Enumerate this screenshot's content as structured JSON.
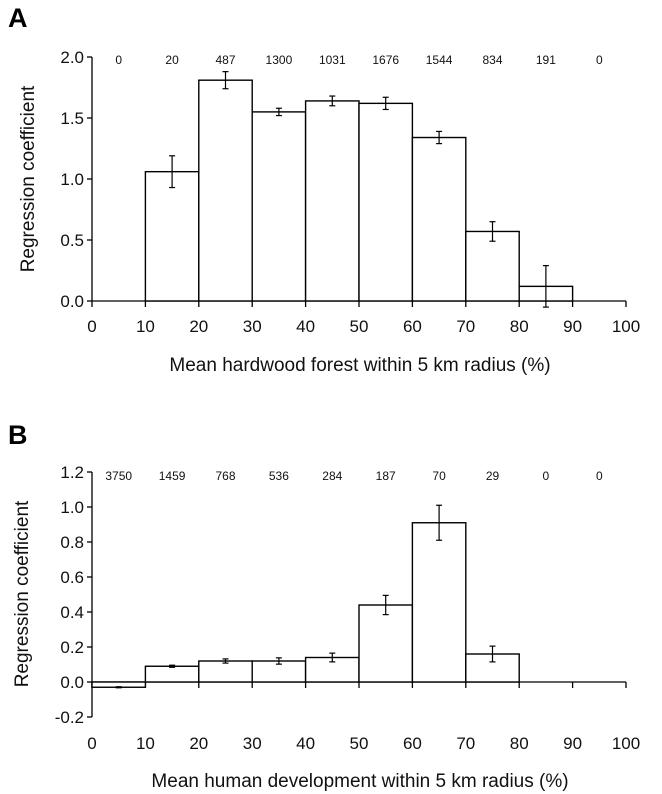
{
  "chart_data": [
    {
      "type": "bar",
      "panel_label": "A",
      "xlabel": "Mean hardwood forest within 5 km radius (%)",
      "ylabel": "Regression coefficient",
      "xlim": [
        0,
        100
      ],
      "ylim": [
        0,
        2.0
      ],
      "x_ticks": [
        "0",
        "10",
        "20",
        "30",
        "40",
        "50",
        "60",
        "70",
        "80",
        "90",
        "100"
      ],
      "y_ticks": [
        "0.0",
        "0.5",
        "1.0",
        "1.5",
        "2.0"
      ],
      "bins": [
        {
          "from": 0,
          "to": 10,
          "value": null,
          "error": null,
          "n": "0"
        },
        {
          "from": 10,
          "to": 20,
          "value": 1.06,
          "error": 0.13,
          "n": "20"
        },
        {
          "from": 20,
          "to": 30,
          "value": 1.81,
          "error": 0.07,
          "n": "487"
        },
        {
          "from": 30,
          "to": 40,
          "value": 1.55,
          "error": 0.03,
          "n": "1300"
        },
        {
          "from": 40,
          "to": 50,
          "value": 1.64,
          "error": 0.04,
          "n": "1031"
        },
        {
          "from": 50,
          "to": 60,
          "value": 1.62,
          "error": 0.05,
          "n": "1676"
        },
        {
          "from": 60,
          "to": 70,
          "value": 1.34,
          "error": 0.05,
          "n": "1544"
        },
        {
          "from": 70,
          "to": 80,
          "value": 0.57,
          "error": 0.08,
          "n": "834"
        },
        {
          "from": 80,
          "to": 90,
          "value": 0.12,
          "error": 0.17,
          "n": "191"
        },
        {
          "from": 90,
          "to": 100,
          "value": null,
          "error": null,
          "n": "0"
        }
      ]
    },
    {
      "type": "bar",
      "panel_label": "B",
      "xlabel": "Mean human development within 5 km radius (%)",
      "ylabel": "Regression coefficient",
      "xlim": [
        0,
        100
      ],
      "ylim": [
        -0.2,
        1.2
      ],
      "x_ticks": [
        "0",
        "10",
        "20",
        "30",
        "40",
        "50",
        "60",
        "70",
        "80",
        "90",
        "100"
      ],
      "y_ticks": [
        "-0.2",
        "0.0",
        "0.2",
        "0.4",
        "0.6",
        "0.8",
        "1.0",
        "1.2"
      ],
      "bins": [
        {
          "from": 0,
          "to": 10,
          "value": -0.03,
          "error": 0.003,
          "n": "3750"
        },
        {
          "from": 10,
          "to": 20,
          "value": 0.09,
          "error": 0.006,
          "n": "1459"
        },
        {
          "from": 20,
          "to": 30,
          "value": 0.12,
          "error": 0.012,
          "n": "768"
        },
        {
          "from": 30,
          "to": 40,
          "value": 0.12,
          "error": 0.018,
          "n": "536"
        },
        {
          "from": 40,
          "to": 50,
          "value": 0.14,
          "error": 0.025,
          "n": "284"
        },
        {
          "from": 50,
          "to": 60,
          "value": 0.44,
          "error": 0.055,
          "n": "187"
        },
        {
          "from": 60,
          "to": 70,
          "value": 0.91,
          "error": 0.1,
          "n": "70"
        },
        {
          "from": 70,
          "to": 80,
          "value": 0.16,
          "error": 0.045,
          "n": "29"
        },
        {
          "from": 80,
          "to": 90,
          "value": null,
          "error": null,
          "n": "0"
        },
        {
          "from": 90,
          "to": 100,
          "value": null,
          "error": null,
          "n": "0"
        }
      ]
    }
  ]
}
